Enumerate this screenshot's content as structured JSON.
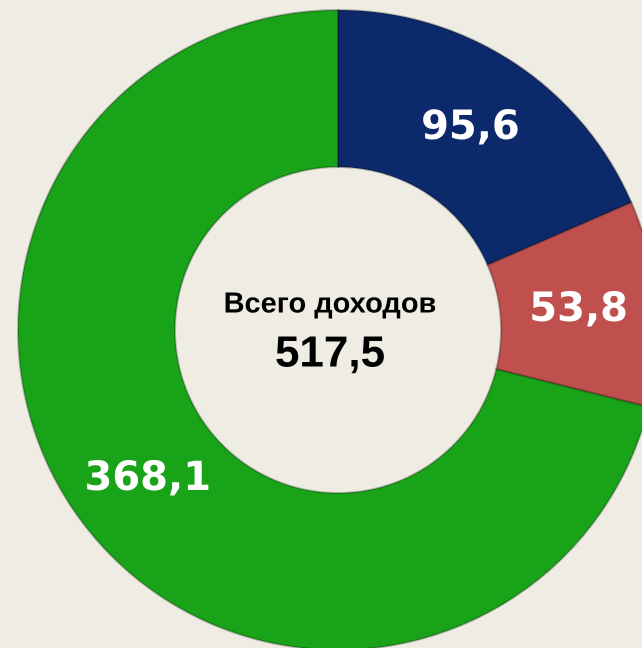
{
  "chart_data": {
    "type": "donut",
    "values": [
      95.6,
      53.8,
      368.1
    ],
    "value_labels": [
      "95,6",
      "53,8",
      "368,1"
    ],
    "colors": [
      "#0c2a6b",
      "#c0504d",
      "#19a319"
    ],
    "center_title": "Всего доходов",
    "total": {
      "value": 517.5,
      "label": "517,5"
    }
  }
}
